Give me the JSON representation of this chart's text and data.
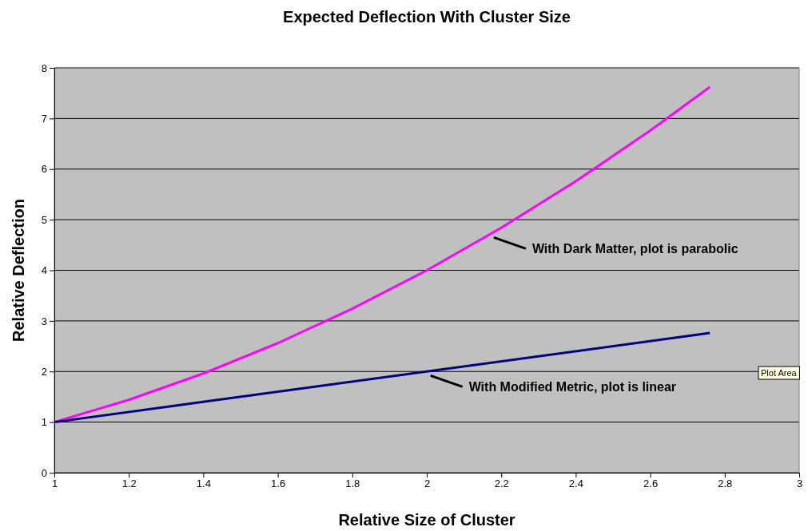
{
  "chart_data": {
    "type": "line",
    "title": "Expected Deflection With Cluster Size",
    "xlabel": "Relative Size of Cluster",
    "ylabel": "Relative Deflection",
    "xlim": [
      1,
      3
    ],
    "xticks": [
      1,
      1.2,
      1.4,
      1.6,
      1.8,
      2,
      2.2,
      2.4,
      2.6,
      2.8,
      3
    ],
    "ylim": [
      0,
      8
    ],
    "yticks": [
      0,
      1,
      2,
      3,
      4,
      5,
      6,
      7,
      8
    ],
    "grid": "y",
    "marker": "none",
    "line_style": "solid",
    "series": [
      {
        "color": "#ff00ff",
        "x": [
          1,
          1.2,
          1.4,
          1.6,
          1.8,
          2,
          2.2,
          2.4,
          2.6,
          2.76
        ],
        "values": [
          1,
          1.44,
          1.96,
          2.56,
          3.24,
          4,
          4.84,
          5.76,
          6.76,
          7.62
        ]
      },
      {
        "color": "#000080",
        "x": [
          1,
          2.76
        ],
        "values": [
          1,
          2.76
        ]
      }
    ],
    "annotations": [
      {
        "text": "With Dark Matter, plot is parabolic",
        "x": 2.18,
        "y": 4.65
      },
      {
        "text": "With Modified Metric, plot is linear",
        "x": 2.01,
        "y": 1.92
      },
      "Plot Area"
    ]
  }
}
